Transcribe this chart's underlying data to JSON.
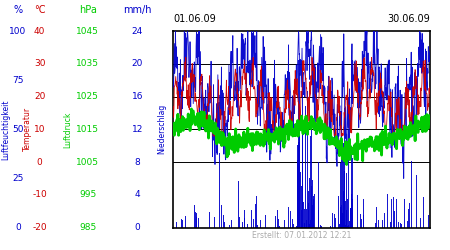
{
  "title_left": "01.06.09",
  "title_right": "30.06.09",
  "footer": "Erstellt: 07.01.2012 12:21",
  "bg_color": "#ffffff",
  "plot_bg": "#ffffff",
  "hum_ticks": [
    0,
    25,
    50,
    75,
    100
  ],
  "temp_ticks": [
    -20,
    -10,
    0,
    10,
    20,
    30,
    40
  ],
  "hpa_ticks": [
    985,
    995,
    1005,
    1015,
    1025,
    1035,
    1045
  ],
  "mm_ticks": [
    0,
    4,
    8,
    12,
    16,
    20,
    24
  ],
  "hum_min": 0,
  "hum_max": 100,
  "temp_min": -20,
  "temp_max": 40,
  "hpa_min": 985,
  "hpa_max": 1045,
  "mm_min": 0,
  "mm_max": 24,
  "grid_mm": [
    8,
    12,
    16,
    20
  ],
  "color_hum": "#0000cc",
  "color_temp": "#cc0000",
  "color_hpa": "#00cc00",
  "color_mm": "#0000cc",
  "seed": 42
}
